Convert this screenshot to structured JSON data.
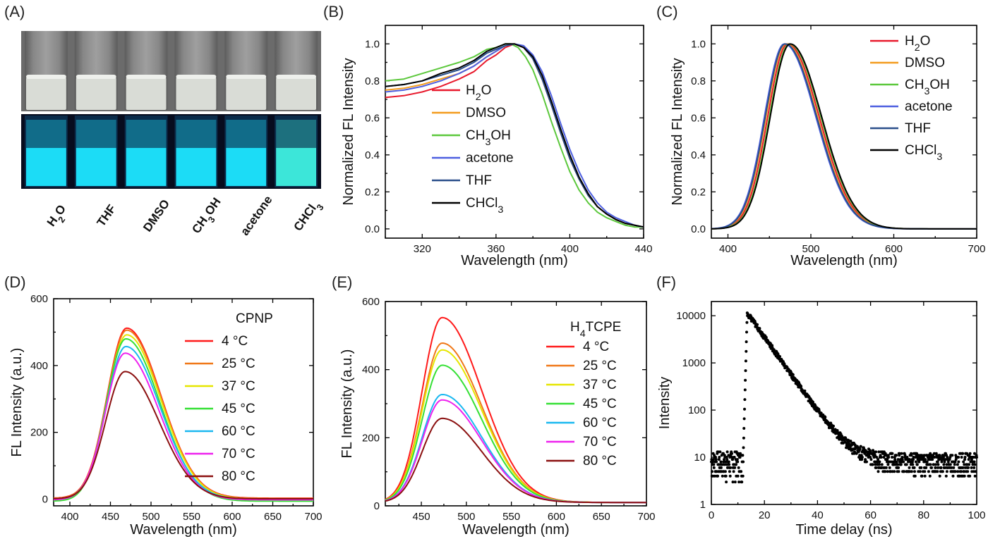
{
  "panels": {
    "A": {
      "letter": "(A)",
      "vial_labels": [
        "H₂O",
        "THF",
        "DMSO",
        "CH₃OH",
        "acetone",
        "CHCl₃"
      ]
    },
    "B": {
      "letter": "(B)"
    },
    "C": {
      "letter": "(C)"
    },
    "D": {
      "letter": "(D)",
      "legend_title": "CPNP"
    },
    "E": {
      "letter": "(E)",
      "legend_title": "H₄TCPE"
    },
    "F": {
      "letter": "(F)"
    }
  },
  "colors": {
    "H2O": "#e8192c",
    "DMSO": "#f39c1e",
    "CH3OH": "#5cc83c",
    "acetone": "#4d5fe0",
    "THF": "#2a4f8a",
    "CHCl3": "#000000",
    "T4": "#ff1a1a",
    "T25": "#f07818",
    "T37": "#e6e600",
    "T45": "#35e035",
    "T60": "#1ab8f0",
    "T70": "#ee22ee",
    "T80": "#8b1010",
    "vial_day_bg": "#6b6b6b",
    "vial_uv_bg": "#070c1e",
    "uv_glow": "#1ee6ff"
  },
  "chart_data": [
    {
      "panel": "B",
      "type": "line",
      "title": "",
      "xlabel": "Wavelength (nm)",
      "ylabel": "Normalized FL Intensity",
      "xlim": [
        300,
        440
      ],
      "ylim": [
        -0.05,
        1.1
      ],
      "xticks": [
        320,
        360,
        400,
        440
      ],
      "yticks": [
        0.0,
        0.2,
        0.4,
        0.6,
        0.8,
        1.0
      ],
      "legend": "center-left",
      "series": [
        {
          "name": "H₂O",
          "color": "#e8192c",
          "x": [
            300,
            310,
            320,
            330,
            340,
            348,
            355,
            360,
            365,
            370,
            375,
            380,
            385,
            390,
            395,
            400,
            405,
            410,
            415,
            420,
            425,
            430,
            435,
            440
          ],
          "y": [
            0.71,
            0.72,
            0.74,
            0.77,
            0.81,
            0.85,
            0.91,
            0.94,
            0.98,
            1.0,
            0.98,
            0.92,
            0.81,
            0.67,
            0.52,
            0.38,
            0.27,
            0.18,
            0.12,
            0.08,
            0.05,
            0.03,
            0.02,
            0.01
          ]
        },
        {
          "name": "DMSO",
          "color": "#f39c1e",
          "x": [
            300,
            310,
            320,
            330,
            340,
            348,
            355,
            360,
            365,
            370,
            375,
            380,
            385,
            390,
            395,
            400,
            405,
            410,
            415,
            420,
            425,
            430,
            435,
            440
          ],
          "y": [
            0.75,
            0.76,
            0.78,
            0.81,
            0.84,
            0.88,
            0.93,
            0.96,
            0.99,
            1.0,
            0.98,
            0.92,
            0.81,
            0.67,
            0.52,
            0.38,
            0.27,
            0.18,
            0.12,
            0.08,
            0.05,
            0.03,
            0.02,
            0.01
          ]
        },
        {
          "name": "CH₃OH",
          "color": "#5cc83c",
          "x": [
            300,
            310,
            320,
            330,
            340,
            348,
            355,
            360,
            365,
            368,
            372,
            376,
            380,
            385,
            390,
            395,
            400,
            405,
            410,
            415,
            420,
            425,
            430,
            435,
            440
          ],
          "y": [
            0.8,
            0.81,
            0.84,
            0.87,
            0.9,
            0.93,
            0.97,
            0.98,
            1.0,
            1.0,
            0.98,
            0.93,
            0.86,
            0.73,
            0.58,
            0.44,
            0.31,
            0.21,
            0.14,
            0.09,
            0.06,
            0.04,
            0.02,
            0.01,
            0.01
          ]
        },
        {
          "name": "acetone",
          "color": "#4d5fe0",
          "x": [
            300,
            310,
            320,
            330,
            340,
            348,
            355,
            360,
            365,
            370,
            375,
            380,
            385,
            390,
            395,
            400,
            405,
            410,
            415,
            420,
            425,
            430,
            435,
            440
          ],
          "y": [
            0.74,
            0.75,
            0.77,
            0.8,
            0.84,
            0.88,
            0.93,
            0.96,
            0.99,
            1.0,
            0.99,
            0.94,
            0.85,
            0.72,
            0.57,
            0.43,
            0.31,
            0.21,
            0.14,
            0.09,
            0.06,
            0.04,
            0.02,
            0.01
          ]
        },
        {
          "name": "THF",
          "color": "#2a4f8a",
          "x": [
            300,
            310,
            320,
            330,
            340,
            348,
            355,
            360,
            365,
            370,
            375,
            380,
            385,
            390,
            395,
            400,
            405,
            410,
            415,
            420,
            425,
            430,
            435,
            440
          ],
          "y": [
            0.77,
            0.78,
            0.8,
            0.83,
            0.86,
            0.9,
            0.95,
            0.97,
            0.99,
            1.0,
            0.98,
            0.92,
            0.81,
            0.67,
            0.52,
            0.38,
            0.27,
            0.18,
            0.12,
            0.08,
            0.05,
            0.03,
            0.02,
            0.01
          ]
        },
        {
          "name": "CHCl₃",
          "color": "#000000",
          "x": [
            300,
            310,
            320,
            330,
            340,
            348,
            355,
            360,
            365,
            370,
            375,
            380,
            385,
            390,
            395,
            400,
            405,
            410,
            415,
            420,
            425,
            430,
            435,
            440
          ],
          "y": [
            0.77,
            0.78,
            0.8,
            0.84,
            0.87,
            0.91,
            0.96,
            0.98,
            1.0,
            1.0,
            0.98,
            0.93,
            0.83,
            0.69,
            0.54,
            0.4,
            0.28,
            0.19,
            0.12,
            0.08,
            0.05,
            0.03,
            0.02,
            0.01
          ]
        }
      ]
    },
    {
      "panel": "C",
      "type": "line",
      "title": "",
      "xlabel": "Wavelength (nm)",
      "ylabel": "Normalized FL Intensity",
      "xlim": [
        380,
        700
      ],
      "ylim": [
        -0.05,
        1.1
      ],
      "xticks": [
        400,
        500,
        600,
        700
      ],
      "yticks": [
        0.0,
        0.2,
        0.4,
        0.6,
        0.8,
        1.0
      ],
      "legend": "top-right",
      "series": [
        {
          "name": "H₂O",
          "color": "#e8192c",
          "peak": 472
        },
        {
          "name": "DMSO",
          "color": "#f39c1e",
          "peak": 470
        },
        {
          "name": "CH₃OH",
          "color": "#5cc83c",
          "peak": 474
        },
        {
          "name": "acetone",
          "color": "#4d5fe0",
          "peak": 468
        },
        {
          "name": "THF",
          "color": "#2a4f8a",
          "peak": 469
        },
        {
          "name": "CHCl₃",
          "color": "#000000",
          "peak": 475
        }
      ]
    },
    {
      "panel": "D",
      "type": "line",
      "title": "",
      "xlabel": "Wavelength (nm)",
      "ylabel": "FL Intensity (a.u.)",
      "xlim": [
        380,
        700
      ],
      "ylim": [
        -20,
        600
      ],
      "xticks": [
        400,
        450,
        500,
        550,
        600,
        650,
        700
      ],
      "yticks": [
        0,
        200,
        400,
        600
      ],
      "legend": "top-right",
      "series": [
        {
          "name": "4 °C",
          "color": "#ff1a1a",
          "peak": 470,
          "max": 512,
          "baseline": 3
        },
        {
          "name": "25 °C",
          "color": "#f07818",
          "peak": 470,
          "max": 506,
          "baseline": 2
        },
        {
          "name": "37 °C",
          "color": "#e6e600",
          "peak": 470,
          "max": 492,
          "baseline": 1
        },
        {
          "name": "45 °C",
          "color": "#35e035",
          "peak": 469,
          "max": 480,
          "baseline": -6
        },
        {
          "name": "60 °C",
          "color": "#1ab8f0",
          "peak": 469,
          "max": 457,
          "baseline": 0
        },
        {
          "name": "70 °C",
          "color": "#ee22ee",
          "peak": 468,
          "max": 437,
          "baseline": -2
        },
        {
          "name": "80 °C",
          "color": "#8b1010",
          "peak": 468,
          "max": 382,
          "baseline": 1
        }
      ]
    },
    {
      "panel": "E",
      "type": "line",
      "title": "",
      "xlabel": "Wavelength (nm)",
      "ylabel": "FL Intensity (a.u.)",
      "xlim": [
        410,
        700
      ],
      "ylim": [
        0,
        600
      ],
      "xticks": [
        450,
        500,
        550,
        600,
        650,
        700
      ],
      "yticks": [
        0,
        200,
        400,
        600
      ],
      "legend": "top-right",
      "series": [
        {
          "name": "4 °C",
          "color": "#ff1a1a",
          "peak": 473,
          "max": 553
        },
        {
          "name": "25 °C",
          "color": "#f07818",
          "peak": 473,
          "max": 478
        },
        {
          "name": "37 °C",
          "color": "#e6e600",
          "peak": 473,
          "max": 458
        },
        {
          "name": "45 °C",
          "color": "#35e035",
          "peak": 473,
          "max": 413
        },
        {
          "name": "60 °C",
          "color": "#1ab8f0",
          "peak": 473,
          "max": 327
        },
        {
          "name": "70 °C",
          "color": "#ee22ee",
          "peak": 473,
          "max": 311
        },
        {
          "name": "80 °C",
          "color": "#8b1010",
          "peak": 473,
          "max": 257
        }
      ]
    },
    {
      "panel": "F",
      "type": "scatter",
      "title": "",
      "xlabel": "Time delay (ns)",
      "ylabel": "Intensity",
      "xlim": [
        0,
        100
      ],
      "ylim": [
        1,
        20000
      ],
      "yscale": "log",
      "xticks": [
        0,
        20,
        40,
        60,
        80,
        100
      ],
      "yticks": [
        1,
        10,
        100,
        1000,
        10000
      ],
      "points": {
        "rise_start": 12,
        "peak_time": 13.5,
        "peak_value": 11500,
        "decay_tau_ns": 5.5,
        "background": 8
      }
    }
  ]
}
